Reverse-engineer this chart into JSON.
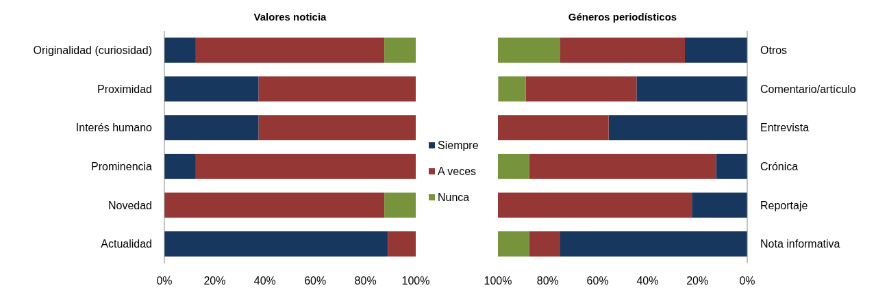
{
  "chart_data": [
    {
      "type": "bar",
      "orientation": "horizontal",
      "stacked": true,
      "title": "Valores noticia",
      "categories": [
        "Originalidad (curiosidad)",
        "Proximidad",
        "Interés humano",
        "Prominencia",
        "Novedad",
        "Actualidad"
      ],
      "series": [
        {
          "name": "Siempre",
          "color": "#17375e",
          "values": [
            12.5,
            37.5,
            37.5,
            12.5,
            0,
            88.9
          ]
        },
        {
          "name": "A veces",
          "color": "#953735",
          "values": [
            75,
            62.5,
            62.5,
            87.5,
            87.5,
            11.1
          ]
        },
        {
          "name": "Nunca",
          "color": "#77933c",
          "values": [
            12.5,
            0,
            0,
            0,
            12.5,
            0
          ]
        }
      ],
      "xlim": [
        0,
        100
      ],
      "xticks": [
        {
          "value": 0,
          "label": "0%"
        },
        {
          "value": 20,
          "label": "20%"
        },
        {
          "value": 40,
          "label": "40%"
        },
        {
          "value": 60,
          "label": "60%"
        },
        {
          "value": 80,
          "label": "80%"
        },
        {
          "value": 100,
          "label": "100%"
        }
      ],
      "legend": "right"
    },
    {
      "type": "bar",
      "orientation": "horizontal",
      "stacked": true,
      "title": "Géneros periodísticos",
      "categories": [
        "Otros",
        "Comentario/artículo",
        "Entrevista",
        "Crónica",
        "Reportaje",
        "Nota informativa"
      ],
      "series": [
        {
          "color": "#17375e",
          "values": [
            25,
            44.4,
            55.6,
            12.5,
            22.2,
            75
          ]
        },
        {
          "color": "#953735",
          "values": [
            50,
            44.4,
            44.4,
            75,
            77.8,
            12.5
          ]
        },
        {
          "color": "#77933c",
          "values": [
            25,
            11.1,
            0,
            12.5,
            0,
            12.5
          ]
        }
      ],
      "xlim": [
        100,
        0
      ],
      "xticks": [
        {
          "value": 100,
          "label": "100%"
        },
        {
          "value": 80,
          "label": "80%"
        },
        {
          "value": 60,
          "label": "60%"
        },
        {
          "value": 40,
          "label": "40%"
        },
        {
          "value": 20,
          "label": "20%"
        },
        {
          "value": 0,
          "label": "0%"
        }
      ]
    }
  ]
}
